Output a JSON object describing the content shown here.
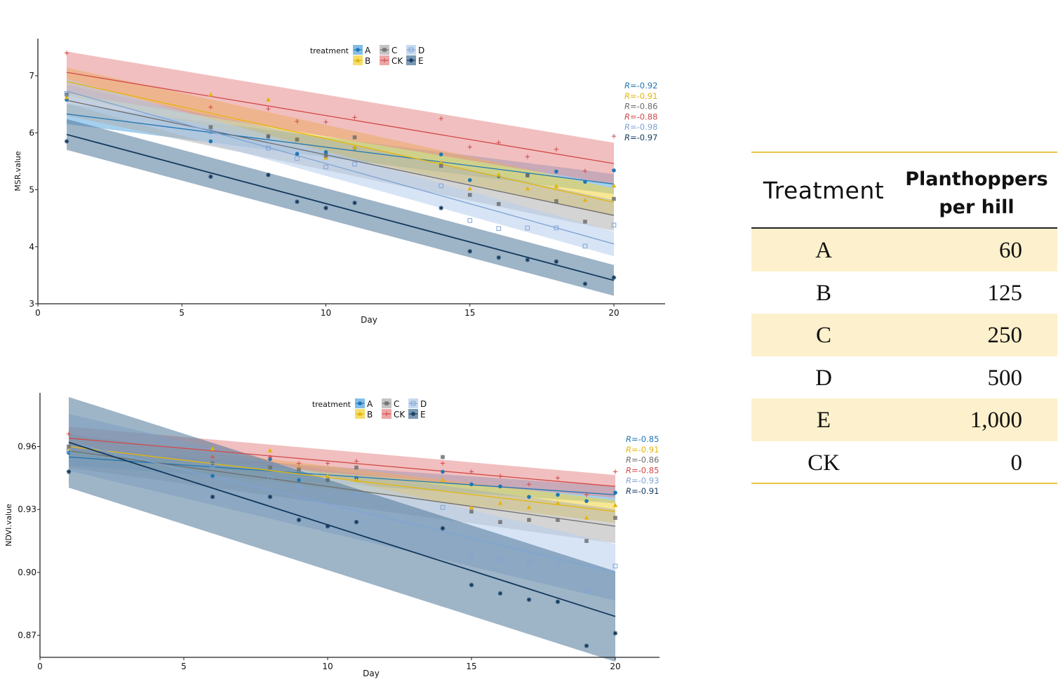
{
  "chart_data": [
    {
      "type": "scatter",
      "id": "msr",
      "title": "",
      "xlabel": "Day",
      "ylabel": "MSR.value",
      "xlim": [
        0,
        22
      ],
      "ylim": [
        3,
        7.6
      ],
      "xticks": [
        0,
        5,
        10,
        15,
        20
      ],
      "yticks": [
        3,
        4,
        5,
        6,
        7
      ],
      "grid": false,
      "legend": {
        "title": "treatment",
        "placement": "top-center",
        "entries": [
          "A",
          "B",
          "C",
          "CK",
          "D",
          "E"
        ]
      },
      "fit": "linear regression with confidence band",
      "x": [
        1,
        6,
        8,
        9,
        10,
        11,
        14,
        15,
        16,
        17,
        18,
        19,
        20
      ],
      "series": [
        {
          "name": "A",
          "color": "#1f77b4",
          "band": "#5aa7e0",
          "marker": "circle",
          "values": [
            6.58,
            5.85,
            5.93,
            5.63,
            5.66,
            5.73,
            5.62,
            5.17,
            5.24,
            5.26,
            5.32,
            5.14,
            5.34
          ],
          "fit_start": 6.33,
          "fit_end": 5.1,
          "ci": 0.13,
          "r_label": "R=-0.92"
        },
        {
          "name": "B",
          "color": "#e3b50f",
          "band": "#f3d33a",
          "marker": "triangle",
          "values": [
            6.62,
            6.67,
            6.58,
            5.9,
            5.56,
            5.74,
            5.48,
            5.02,
            5.26,
            5.02,
            5.06,
            4.82,
            5.07
          ],
          "fit_start": 6.9,
          "fit_end": 4.78,
          "ci": 0.18,
          "r_label": "R=-0.91"
        },
        {
          "name": "C",
          "color": "#6e6e6e",
          "band": "#b0b0b0",
          "marker": "square",
          "values": [
            6.67,
            6.1,
            5.94,
            5.88,
            5.6,
            5.92,
            5.42,
            4.91,
            4.75,
            5.25,
            4.8,
            4.44,
            4.84
          ],
          "fit_start": 6.57,
          "fit_end": 4.55,
          "ci": 0.2,
          "r_label": "R=-0.86"
        },
        {
          "name": "CK",
          "color": "#d24a4a",
          "band": "#e68a8a",
          "marker": "plus",
          "values": [
            7.4,
            6.45,
            6.42,
            6.2,
            6.19,
            6.27,
            6.25,
            5.75,
            5.83,
            5.58,
            5.71,
            5.33,
            5.94
          ],
          "fit_start": 7.06,
          "fit_end": 5.46,
          "ci": 0.27,
          "r_label": "R=-0.88"
        },
        {
          "name": "D",
          "color": "#7fa4d4",
          "band": "#b6cdec",
          "marker": "square-open",
          "values": [
            6.69,
            6.02,
            5.73,
            5.55,
            5.4,
            5.45,
            5.07,
            4.46,
            4.32,
            4.33,
            4.33,
            4.01,
            4.38
          ],
          "fit_start": 6.73,
          "fit_end": 4.05,
          "ci": 0.16,
          "r_label": "R=-0.98"
        },
        {
          "name": "E",
          "color": "#13395e",
          "band": "#4f7799",
          "marker": "asterisk",
          "values": [
            5.85,
            5.23,
            5.26,
            4.79,
            4.68,
            4.77,
            4.68,
            3.92,
            3.81,
            3.77,
            3.74,
            3.35,
            3.46
          ],
          "fit_start": 5.97,
          "fit_end": 3.41,
          "ci": 0.2,
          "r_label": "R=-0.97"
        }
      ]
    },
    {
      "type": "scatter",
      "id": "ndvi",
      "title": "",
      "xlabel": "Day",
      "ylabel": "NDVI.value",
      "xlim": [
        0,
        21.5
      ],
      "ylim": [
        0.8595,
        0.979
      ],
      "xticks": [
        0,
        5,
        10,
        15,
        20
      ],
      "yticks": [
        0.87,
        0.9,
        0.93,
        0.96
      ],
      "ytick_labels": [
        "0.87",
        "0.90",
        "0.93",
        "0.96"
      ],
      "grid": false,
      "legend": {
        "title": "treatment",
        "placement": "top-center",
        "entries": [
          "A",
          "B",
          "C",
          "CK",
          "D",
          "E"
        ]
      },
      "fit": "linear regression with confidence band",
      "x": [
        1,
        6,
        8,
        9,
        10,
        11,
        14,
        15,
        16,
        17,
        18,
        19,
        20
      ],
      "series": [
        {
          "name": "A",
          "color": "#1f77b4",
          "band": "#5aa7e0",
          "marker": "circle",
          "values": [
            0.957,
            0.946,
            0.954,
            0.944,
            0.944,
            0.945,
            0.948,
            0.942,
            0.941,
            0.936,
            0.937,
            0.934,
            0.938
          ],
          "fit_start": 0.955,
          "fit_end": 0.937,
          "ci": 0.003,
          "r_label": "R=-0.85"
        },
        {
          "name": "B",
          "color": "#e3b50f",
          "band": "#f3d33a",
          "marker": "triangle",
          "values": [
            0.959,
            0.959,
            0.958,
            0.95,
            0.946,
            0.944,
            0.944,
            0.931,
            0.933,
            0.931,
            0.933,
            0.926,
            0.932
          ],
          "fit_start": 0.96,
          "fit_end": 0.929,
          "ci": 0.004,
          "r_label": "R=-0.91"
        },
        {
          "name": "C",
          "color": "#6e6e6e",
          "band": "#b0b0b0",
          "marker": "square",
          "values": [
            0.96,
            0.952,
            0.95,
            0.949,
            0.944,
            0.95,
            0.955,
            0.929,
            0.924,
            0.925,
            0.925,
            0.915,
            0.926
          ],
          "fit_start": 0.958,
          "fit_end": 0.922,
          "ci": 0.006,
          "r_label": "R=-0.86"
        },
        {
          "name": "CK",
          "color": "#d24a4a",
          "band": "#e68a8a",
          "marker": "plus",
          "values": [
            0.966,
            0.955,
            0.955,
            0.952,
            0.952,
            0.953,
            0.952,
            0.948,
            0.946,
            0.942,
            0.945,
            0.937,
            0.948
          ],
          "fit_start": 0.964,
          "fit_end": 0.941,
          "ci": 0.004,
          "r_label": "R=-0.85"
        },
        {
          "name": "D",
          "color": "#7fa4d4",
          "band": "#b6cdec",
          "marker": "square-open",
          "values": [
            0.958,
            0.951,
            0.945,
            0.941,
            0.937,
            0.937,
            0.931,
            0.908,
            0.906,
            0.905,
            0.904,
            0.891,
            0.903
          ],
          "fit_start": 0.962,
          "fit_end": 0.9,
          "ci": 0.01,
          "r_label": "R=-0.93"
        },
        {
          "name": "E",
          "color": "#13395e",
          "band": "#4f7799",
          "marker": "asterisk",
          "values": [
            0.948,
            0.936,
            0.936,
            0.925,
            0.922,
            0.924,
            0.921,
            0.894,
            0.89,
            0.887,
            0.886,
            0.865,
            0.871
          ],
          "fit_start": 0.962,
          "fit_end": 0.879,
          "ci": 0.016,
          "r_label": "R=-0.91"
        }
      ]
    }
  ],
  "table": {
    "headers": {
      "treatment": "Treatment",
      "planthoppers_line1": "Planthoppers",
      "planthoppers_line2": "per hill"
    },
    "rows": [
      {
        "treatment": "A",
        "value": "60"
      },
      {
        "treatment": "B",
        "value": "125"
      },
      {
        "treatment": "C",
        "value": "250"
      },
      {
        "treatment": "D",
        "value": "500"
      },
      {
        "treatment": "E",
        "value": "1,000"
      },
      {
        "treatment": "CK",
        "value": "0"
      }
    ],
    "accent_color": "#e8c547",
    "shade_color": "#fdf0cc"
  }
}
